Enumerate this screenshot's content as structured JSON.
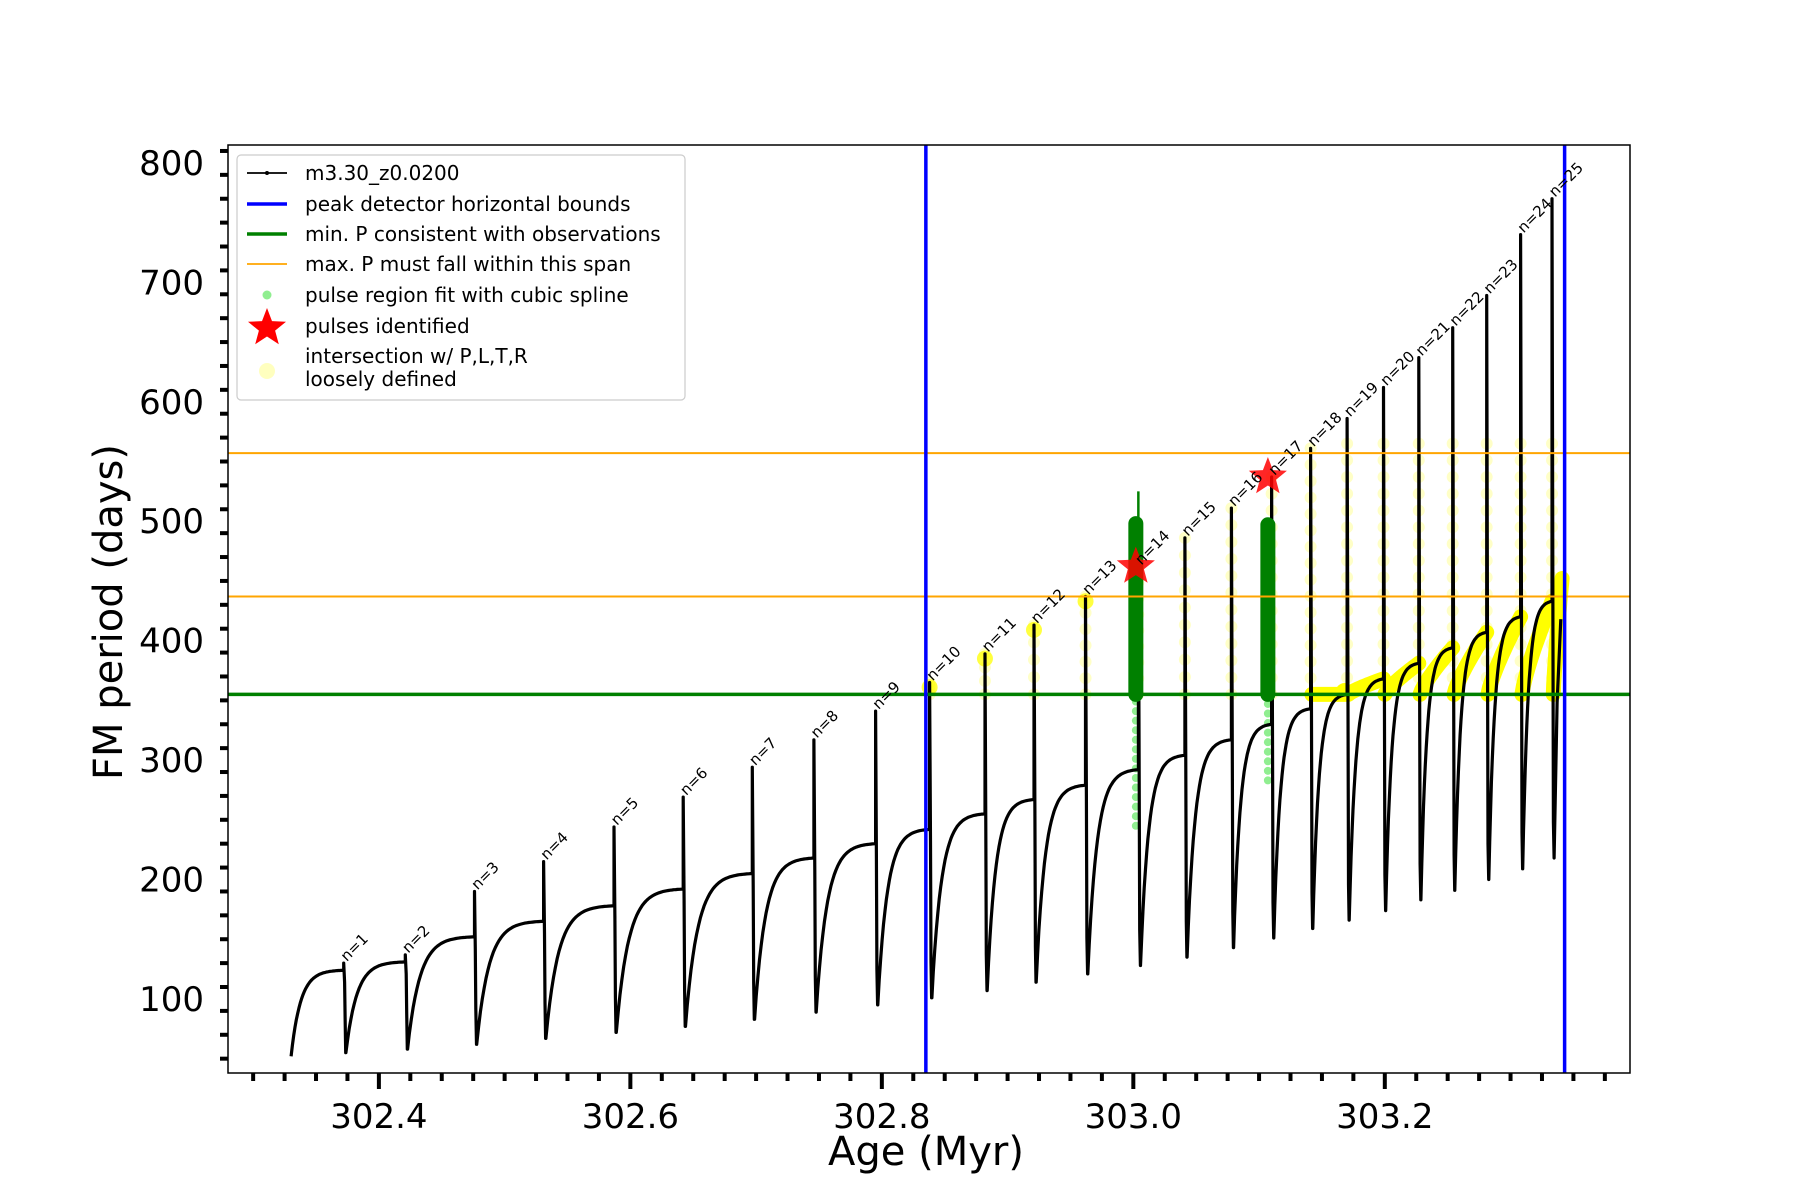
{
  "chart_data": {
    "type": "line",
    "xlabel": "Age (Myr)",
    "ylabel": "FM period (days)",
    "xlim": [
      302.28,
      303.395
    ],
    "ylim": [
      38,
      815
    ],
    "x_major_ticks": [
      302.4,
      302.6,
      302.8,
      303.0,
      303.2
    ],
    "x_tick_labels": [
      "302.4",
      "302.6",
      "302.8",
      "303.0",
      "303.2"
    ],
    "y_major_ticks": [
      100,
      200,
      300,
      400,
      500,
      600,
      700,
      800
    ],
    "y_tick_labels": [
      "100",
      "200",
      "300",
      "400",
      "500",
      "600",
      "700",
      "800"
    ],
    "grid": false,
    "legend_position": "top-left",
    "colors": {
      "track": "#000000",
      "bounds": "#0000ff",
      "min_period": "#008000",
      "max_period_span": "#ffa500",
      "spline_fit": "#90ee90",
      "pulses": "#ff0000",
      "intersection": "#ffff00"
    },
    "legend": [
      {
        "key": "track",
        "label": "m3.30_z0.0200"
      },
      {
        "key": "bounds",
        "label": "peak detector horizontal bounds"
      },
      {
        "key": "min_period",
        "label": "min. P consistent with observations"
      },
      {
        "key": "max_period_span",
        "label": "max. P must fall within this span"
      },
      {
        "key": "spline_fit",
        "label": "pulse region fit with cubic spline"
      },
      {
        "key": "pulses",
        "label": "pulses identified"
      },
      {
        "key": "intersection",
        "label": "intersection w/ P,L,T,R",
        "label2": "loosely defined"
      }
    ],
    "vertical_bounds_x": [
      302.835,
      303.343
    ],
    "min_period_line_y": 355,
    "max_period_span_y": [
      437,
      557
    ],
    "track_start": {
      "x": 302.33,
      "y": 52
    },
    "pulses": [
      {
        "n": 1,
        "label": "n=1",
        "x": 302.372,
        "pre_y": 124,
        "peak_y": 130,
        "min_y": 55
      },
      {
        "n": 2,
        "label": "n=2",
        "x": 302.421,
        "pre_y": 131,
        "peak_y": 137,
        "min_y": 58
      },
      {
        "n": 3,
        "label": "n=3",
        "x": 302.476,
        "pre_y": 152,
        "peak_y": 190,
        "min_y": 62
      },
      {
        "n": 4,
        "label": "n=4",
        "x": 302.531,
        "pre_y": 165,
        "peak_y": 215,
        "min_y": 67
      },
      {
        "n": 5,
        "label": "n=5",
        "x": 302.587,
        "pre_y": 178,
        "peak_y": 244,
        "min_y": 72
      },
      {
        "n": 6,
        "label": "n=6",
        "x": 302.642,
        "pre_y": 192,
        "peak_y": 269,
        "min_y": 77
      },
      {
        "n": 7,
        "label": "n=7",
        "x": 302.697,
        "pre_y": 205,
        "peak_y": 294,
        "min_y": 83
      },
      {
        "n": 8,
        "label": "n=8",
        "x": 302.746,
        "pre_y": 218,
        "peak_y": 317,
        "min_y": 89
      },
      {
        "n": 9,
        "label": "n=9",
        "x": 302.795,
        "pre_y": 230,
        "peak_y": 341,
        "min_y": 95
      },
      {
        "n": 10,
        "label": "n=10",
        "x": 302.838,
        "pre_y": 242,
        "peak_y": 365,
        "min_y": 101
      },
      {
        "n": 11,
        "label": "n=11",
        "x": 302.882,
        "pre_y": 255,
        "peak_y": 389,
        "min_y": 107
      },
      {
        "n": 12,
        "label": "n=12",
        "x": 302.921,
        "pre_y": 267,
        "peak_y": 413,
        "min_y": 114
      },
      {
        "n": 13,
        "label": "n=13",
        "x": 302.962,
        "pre_y": 279,
        "peak_y": 437,
        "min_y": 121
      },
      {
        "n": 14,
        "label": "n=14",
        "x": 303.004,
        "pre_y": 292,
        "peak_y": 462,
        "min_y": 128
      },
      {
        "n": 15,
        "label": "n=15",
        "x": 303.041,
        "pre_y": 304,
        "peak_y": 486,
        "min_y": 135
      },
      {
        "n": 16,
        "label": "n=16",
        "x": 303.078,
        "pre_y": 317,
        "peak_y": 511,
        "min_y": 143
      },
      {
        "n": 17,
        "label": "n=17",
        "x": 303.11,
        "pre_y": 330,
        "peak_y": 537,
        "min_y": 151
      },
      {
        "n": 18,
        "label": "n=18",
        "x": 303.141,
        "pre_y": 343,
        "peak_y": 561,
        "min_y": 159
      },
      {
        "n": 19,
        "label": "n=19",
        "x": 303.17,
        "pre_y": 355,
        "peak_y": 586,
        "min_y": 166
      },
      {
        "n": 20,
        "label": "n=20",
        "x": 303.199,
        "pre_y": 368,
        "peak_y": 612,
        "min_y": 174
      },
      {
        "n": 21,
        "label": "n=21",
        "x": 303.227,
        "pre_y": 381,
        "peak_y": 637,
        "min_y": 183
      },
      {
        "n": 22,
        "label": "n=22",
        "x": 303.254,
        "pre_y": 394,
        "peak_y": 662,
        "min_y": 191
      },
      {
        "n": 23,
        "label": "n=23",
        "x": 303.281,
        "pre_y": 407,
        "peak_y": 689,
        "min_y": 200
      },
      {
        "n": 24,
        "label": "n=24",
        "x": 303.308,
        "pre_y": 420,
        "peak_y": 740,
        "min_y": 209
      },
      {
        "n": 25,
        "label": "n=25",
        "x": 303.333,
        "pre_y": 433,
        "peak_y": 770,
        "min_y": 218
      }
    ],
    "pulses_identified": [
      {
        "x": 303.002,
        "y": 462
      },
      {
        "x": 303.107,
        "y": 537
      }
    ],
    "spline_fit_regions": [
      {
        "x": 303.002,
        "y_min": 245,
        "y_max": 500
      },
      {
        "x": 303.107,
        "y_min": 283,
        "y_max": 505
      }
    ],
    "min_period_crossings_highlight": [
      {
        "x": 303.002,
        "y_min": 355,
        "y_max": 498
      },
      {
        "x": 303.107,
        "y_min": 355,
        "y_max": 497
      }
    ]
  }
}
